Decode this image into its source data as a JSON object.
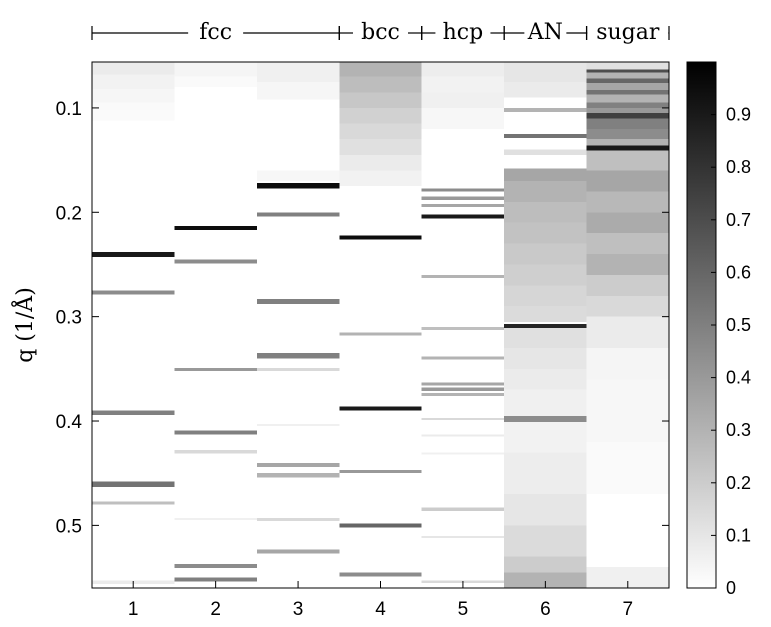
{
  "chart_data": {
    "type": "heatmap",
    "ylabel": "q (1/Å)",
    "xlabel": "",
    "title": "",
    "ylim": [
      0.056,
      0.56
    ],
    "yticks": [
      0.1,
      0.2,
      0.3,
      0.4,
      0.5
    ],
    "ytick_labels": [
      "0.1",
      "0.2",
      "0.3",
      "0.4",
      "0.5"
    ],
    "columns": [
      1,
      2,
      3,
      4,
      5,
      6,
      7
    ],
    "column_labels": [
      "1",
      "2",
      "3",
      "4",
      "5",
      "6",
      "7"
    ],
    "groups": [
      {
        "label": "fcc",
        "from": 1,
        "to": 3
      },
      {
        "label": "bcc",
        "from": 4,
        "to": 4
      },
      {
        "label": "hcp",
        "from": 5,
        "to": 5
      },
      {
        "label": "AN",
        "from": 6,
        "to": 6
      },
      {
        "label": "sugar",
        "from": 7,
        "to": 7
      }
    ],
    "colorbar": {
      "min": 0,
      "max": 1,
      "ticks": [
        0,
        0.1,
        0.2,
        0.3,
        0.4,
        0.5,
        0.6,
        0.7,
        0.8,
        0.9
      ],
      "tick_labels": [
        "0",
        "0.1",
        "0.2",
        "0.3",
        "0.4",
        "0.5",
        "0.6",
        "0.7",
        "0.8",
        "0.9"
      ],
      "colormap": "white-to-black"
    },
    "series": [
      {
        "column": 1,
        "bands": [
          {
            "q0": 0.056,
            "q1": 0.068,
            "v": 0.08
          },
          {
            "q0": 0.068,
            "q1": 0.082,
            "v": 0.05
          },
          {
            "q0": 0.082,
            "q1": 0.095,
            "v": 0.035
          },
          {
            "q0": 0.095,
            "q1": 0.112,
            "v": 0.02
          },
          {
            "q0": 0.238,
            "q1": 0.243,
            "v": 0.9
          },
          {
            "q0": 0.275,
            "q1": 0.279,
            "v": 0.45
          },
          {
            "q0": 0.39,
            "q1": 0.394,
            "v": 0.5
          },
          {
            "q0": 0.458,
            "q1": 0.463,
            "v": 0.55
          },
          {
            "q0": 0.477,
            "q1": 0.48,
            "v": 0.25
          },
          {
            "q0": 0.553,
            "q1": 0.556,
            "v": 0.08
          }
        ]
      },
      {
        "column": 2,
        "bands": [
          {
            "q0": 0.056,
            "q1": 0.07,
            "v": 0.04
          },
          {
            "q0": 0.07,
            "q1": 0.08,
            "v": 0.02
          },
          {
            "q0": 0.213,
            "q1": 0.217,
            "v": 0.95
          },
          {
            "q0": 0.245,
            "q1": 0.249,
            "v": 0.45
          },
          {
            "q0": 0.349,
            "q1": 0.352,
            "v": 0.4
          },
          {
            "q0": 0.409,
            "q1": 0.413,
            "v": 0.5
          },
          {
            "q0": 0.428,
            "q1": 0.431,
            "v": 0.15
          },
          {
            "q0": 0.493,
            "q1": 0.495,
            "v": 0.06
          },
          {
            "q0": 0.537,
            "q1": 0.541,
            "v": 0.45
          },
          {
            "q0": 0.55,
            "q1": 0.554,
            "v": 0.5
          }
        ]
      },
      {
        "column": 3,
        "bands": [
          {
            "q0": 0.056,
            "q1": 0.075,
            "v": 0.06
          },
          {
            "q0": 0.075,
            "q1": 0.092,
            "v": 0.035
          },
          {
            "q0": 0.16,
            "q1": 0.17,
            "v": 0.03
          },
          {
            "q0": 0.172,
            "q1": 0.177,
            "v": 0.95
          },
          {
            "q0": 0.2,
            "q1": 0.204,
            "v": 0.5
          },
          {
            "q0": 0.283,
            "q1": 0.288,
            "v": 0.5
          },
          {
            "q0": 0.335,
            "q1": 0.34,
            "v": 0.5
          },
          {
            "q0": 0.349,
            "q1": 0.352,
            "v": 0.15
          },
          {
            "q0": 0.403,
            "q1": 0.405,
            "v": 0.06
          },
          {
            "q0": 0.44,
            "q1": 0.444,
            "v": 0.35
          },
          {
            "q0": 0.45,
            "q1": 0.454,
            "v": 0.3
          },
          {
            "q0": 0.493,
            "q1": 0.496,
            "v": 0.15
          },
          {
            "q0": 0.523,
            "q1": 0.527,
            "v": 0.35
          }
        ]
      },
      {
        "column": 4,
        "bands": [
          {
            "q0": 0.056,
            "q1": 0.07,
            "v": 0.3
          },
          {
            "q0": 0.07,
            "q1": 0.085,
            "v": 0.26
          },
          {
            "q0": 0.085,
            "q1": 0.1,
            "v": 0.22
          },
          {
            "q0": 0.1,
            "q1": 0.115,
            "v": 0.18
          },
          {
            "q0": 0.115,
            "q1": 0.13,
            "v": 0.15
          },
          {
            "q0": 0.13,
            "q1": 0.145,
            "v": 0.12
          },
          {
            "q0": 0.145,
            "q1": 0.16,
            "v": 0.08
          },
          {
            "q0": 0.16,
            "q1": 0.175,
            "v": 0.05
          },
          {
            "q0": 0.222,
            "q1": 0.226,
            "v": 0.95
          },
          {
            "q0": 0.315,
            "q1": 0.318,
            "v": 0.3
          },
          {
            "q0": 0.386,
            "q1": 0.39,
            "v": 0.9
          },
          {
            "q0": 0.447,
            "q1": 0.45,
            "v": 0.4
          },
          {
            "q0": 0.498,
            "q1": 0.502,
            "v": 0.6
          },
          {
            "q0": 0.545,
            "q1": 0.549,
            "v": 0.45
          }
        ]
      },
      {
        "column": 5,
        "bands": [
          {
            "q0": 0.056,
            "q1": 0.07,
            "v": 0.07
          },
          {
            "q0": 0.07,
            "q1": 0.085,
            "v": 0.05
          },
          {
            "q0": 0.085,
            "q1": 0.1,
            "v": 0.06
          },
          {
            "q0": 0.1,
            "q1": 0.12,
            "v": 0.03
          },
          {
            "q0": 0.177,
            "q1": 0.18,
            "v": 0.45
          },
          {
            "q0": 0.185,
            "q1": 0.188,
            "v": 0.4
          },
          {
            "q0": 0.192,
            "q1": 0.195,
            "v": 0.35
          },
          {
            "q0": 0.202,
            "q1": 0.206,
            "v": 0.9
          },
          {
            "q0": 0.26,
            "q1": 0.263,
            "v": 0.3
          },
          {
            "q0": 0.31,
            "q1": 0.313,
            "v": 0.25
          },
          {
            "q0": 0.338,
            "q1": 0.341,
            "v": 0.3
          },
          {
            "q0": 0.363,
            "q1": 0.366,
            "v": 0.35
          },
          {
            "q0": 0.368,
            "q1": 0.371,
            "v": 0.4
          },
          {
            "q0": 0.373,
            "q1": 0.376,
            "v": 0.3
          },
          {
            "q0": 0.397,
            "q1": 0.399,
            "v": 0.15
          },
          {
            "q0": 0.413,
            "q1": 0.415,
            "v": 0.08
          },
          {
            "q0": 0.43,
            "q1": 0.432,
            "v": 0.06
          },
          {
            "q0": 0.483,
            "q1": 0.486,
            "v": 0.2
          },
          {
            "q0": 0.51,
            "q1": 0.512,
            "v": 0.1
          },
          {
            "q0": 0.553,
            "q1": 0.555,
            "v": 0.15
          }
        ]
      },
      {
        "column": 6,
        "bands": [
          {
            "q0": 0.056,
            "q1": 0.075,
            "v": 0.1
          },
          {
            "q0": 0.075,
            "q1": 0.09,
            "v": 0.08
          },
          {
            "q0": 0.1,
            "q1": 0.104,
            "v": 0.3
          },
          {
            "q0": 0.125,
            "q1": 0.129,
            "v": 0.55
          },
          {
            "q0": 0.14,
            "q1": 0.145,
            "v": 0.12
          },
          {
            "q0": 0.158,
            "q1": 0.17,
            "v": 0.35
          },
          {
            "q0": 0.17,
            "q1": 0.19,
            "v": 0.3
          },
          {
            "q0": 0.19,
            "q1": 0.21,
            "v": 0.26
          },
          {
            "q0": 0.21,
            "q1": 0.23,
            "v": 0.24
          },
          {
            "q0": 0.23,
            "q1": 0.25,
            "v": 0.21
          },
          {
            "q0": 0.25,
            "q1": 0.27,
            "v": 0.19
          },
          {
            "q0": 0.27,
            "q1": 0.29,
            "v": 0.16
          },
          {
            "q0": 0.29,
            "q1": 0.305,
            "v": 0.14
          },
          {
            "q0": 0.307,
            "q1": 0.311,
            "v": 0.85
          },
          {
            "q0": 0.311,
            "q1": 0.33,
            "v": 0.12
          },
          {
            "q0": 0.33,
            "q1": 0.35,
            "v": 0.1
          },
          {
            "q0": 0.35,
            "q1": 0.37,
            "v": 0.08
          },
          {
            "q0": 0.37,
            "q1": 0.395,
            "v": 0.06
          },
          {
            "q0": 0.395,
            "q1": 0.401,
            "v": 0.45
          },
          {
            "q0": 0.401,
            "q1": 0.43,
            "v": 0.05
          },
          {
            "q0": 0.43,
            "q1": 0.47,
            "v": 0.07
          },
          {
            "q0": 0.47,
            "q1": 0.5,
            "v": 0.1
          },
          {
            "q0": 0.5,
            "q1": 0.53,
            "v": 0.14
          },
          {
            "q0": 0.53,
            "q1": 0.545,
            "v": 0.2
          },
          {
            "q0": 0.545,
            "q1": 0.56,
            "v": 0.3
          }
        ]
      },
      {
        "column": 7,
        "bands": [
          {
            "q0": 0.056,
            "q1": 0.063,
            "v": 0.12
          },
          {
            "q0": 0.063,
            "q1": 0.066,
            "v": 0.7
          },
          {
            "q0": 0.066,
            "q1": 0.072,
            "v": 0.3
          },
          {
            "q0": 0.072,
            "q1": 0.076,
            "v": 0.6
          },
          {
            "q0": 0.076,
            "q1": 0.083,
            "v": 0.35
          },
          {
            "q0": 0.083,
            "q1": 0.087,
            "v": 0.55
          },
          {
            "q0": 0.087,
            "q1": 0.095,
            "v": 0.3
          },
          {
            "q0": 0.095,
            "q1": 0.1,
            "v": 0.5
          },
          {
            "q0": 0.1,
            "q1": 0.105,
            "v": 0.4
          },
          {
            "q0": 0.105,
            "q1": 0.11,
            "v": 0.75
          },
          {
            "q0": 0.11,
            "q1": 0.12,
            "v": 0.5
          },
          {
            "q0": 0.12,
            "q1": 0.13,
            "v": 0.45
          },
          {
            "q0": 0.13,
            "q1": 0.136,
            "v": 0.3
          },
          {
            "q0": 0.136,
            "q1": 0.141,
            "v": 0.9
          },
          {
            "q0": 0.141,
            "q1": 0.16,
            "v": 0.25
          },
          {
            "q0": 0.16,
            "q1": 0.18,
            "v": 0.35
          },
          {
            "q0": 0.18,
            "q1": 0.2,
            "v": 0.28
          },
          {
            "q0": 0.2,
            "q1": 0.22,
            "v": 0.33
          },
          {
            "q0": 0.22,
            "q1": 0.24,
            "v": 0.25
          },
          {
            "q0": 0.24,
            "q1": 0.26,
            "v": 0.3
          },
          {
            "q0": 0.26,
            "q1": 0.28,
            "v": 0.2
          },
          {
            "q0": 0.28,
            "q1": 0.3,
            "v": 0.15
          },
          {
            "q0": 0.3,
            "q1": 0.33,
            "v": 0.08
          },
          {
            "q0": 0.33,
            "q1": 0.36,
            "v": 0.04
          },
          {
            "q0": 0.36,
            "q1": 0.42,
            "v": 0.03
          },
          {
            "q0": 0.42,
            "q1": 0.47,
            "v": 0.02
          },
          {
            "q0": 0.54,
            "q1": 0.56,
            "v": 0.06
          }
        ]
      }
    ]
  }
}
